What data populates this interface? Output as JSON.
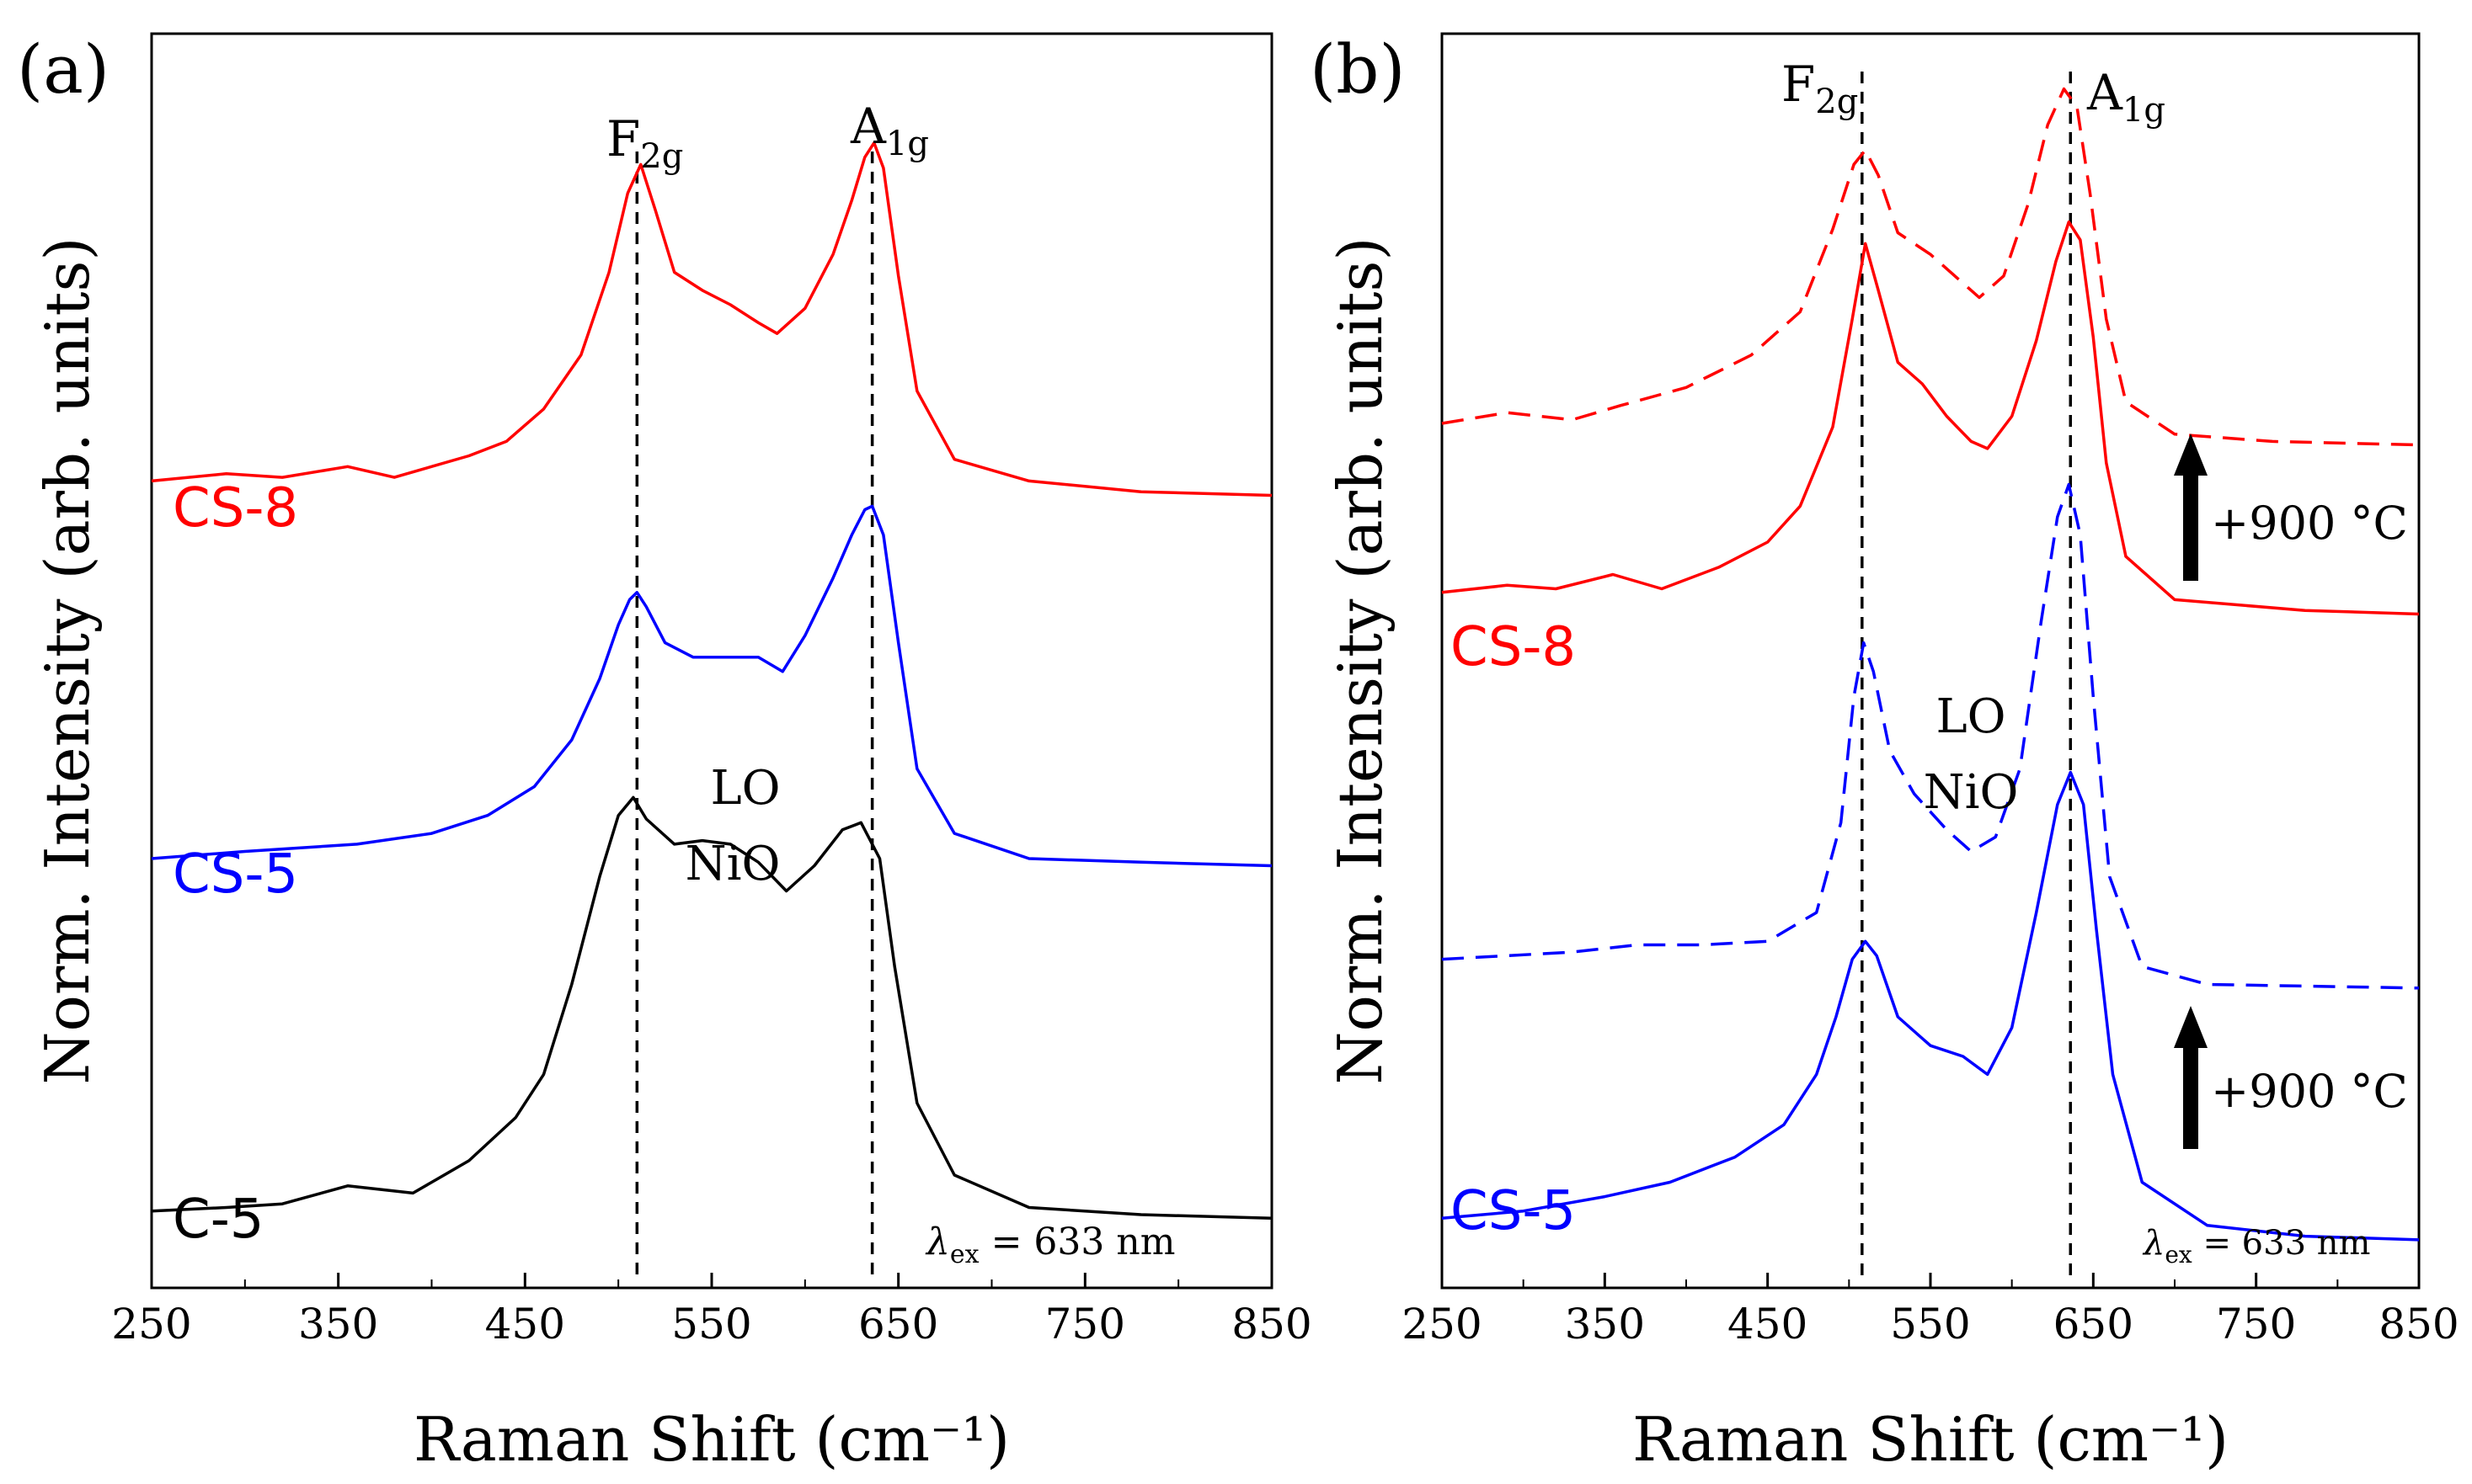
{
  "chart_data": [
    {
      "type": "line",
      "panel_label": "(a)",
      "xlabel": "Raman Shift (cm⁻¹)",
      "ylabel": "Norm. Intensity (arb. units)",
      "xlim": [
        250,
        850
      ],
      "ylim": [
        0,
        3.3
      ],
      "x_ticks": [
        "250",
        "350",
        "450",
        "550",
        "650",
        "750",
        "850"
      ],
      "excitation_label": "λ",
      "excitation_sub": "ex",
      "excitation_value": " = 633 nm",
      "peak_labels": [
        {
          "base": "F",
          "sub": "2g",
          "x": 510
        },
        {
          "base": "A",
          "sub": "1g",
          "x": 636
        }
      ],
      "annotation_lines": [
        "LO",
        "NiO"
      ],
      "series": [
        {
          "name": "CS-8",
          "color": "#ff0000",
          "dash": "solid",
          "x": [
            250,
            290,
            320,
            355,
            380,
            420,
            440,
            460,
            480,
            495,
            505,
            512,
            520,
            530,
            545,
            560,
            575,
            585,
            600,
            615,
            625,
            632,
            637,
            642,
            650,
            660,
            680,
            720,
            780,
            850
          ],
          "y": [
            2.15,
            2.17,
            2.16,
            2.19,
            2.16,
            2.22,
            2.26,
            2.35,
            2.5,
            2.73,
            2.95,
            3.03,
            2.9,
            2.73,
            2.68,
            2.64,
            2.59,
            2.56,
            2.63,
            2.78,
            2.93,
            3.05,
            3.09,
            3.02,
            2.72,
            2.4,
            2.21,
            2.15,
            2.12,
            2.11
          ]
        },
        {
          "name": "CS-5",
          "color": "#0000ff",
          "dash": "solid",
          "x": [
            250,
            300,
            360,
            400,
            430,
            455,
            475,
            490,
            500,
            506,
            510,
            515,
            525,
            540,
            560,
            575,
            588,
            600,
            615,
            625,
            632,
            636,
            642,
            650,
            660,
            680,
            720,
            780,
            850
          ],
          "y": [
            1.1,
            1.12,
            1.14,
            1.17,
            1.22,
            1.3,
            1.43,
            1.6,
            1.75,
            1.82,
            1.84,
            1.8,
            1.7,
            1.66,
            1.66,
            1.66,
            1.62,
            1.72,
            1.88,
            2.0,
            2.07,
            2.08,
            2.0,
            1.7,
            1.35,
            1.17,
            1.1,
            1.09,
            1.08
          ]
        },
        {
          "name": "C-5",
          "color": "#000000",
          "dash": "solid",
          "x": [
            250,
            290,
            320,
            355,
            390,
            420,
            445,
            460,
            475,
            490,
            500,
            508,
            515,
            530,
            545,
            560,
            575,
            590,
            605,
            620,
            630,
            640,
            648,
            660,
            680,
            720,
            780,
            850
          ],
          "y": [
            0.12,
            0.13,
            0.14,
            0.19,
            0.17,
            0.26,
            0.38,
            0.5,
            0.75,
            1.05,
            1.22,
            1.27,
            1.21,
            1.14,
            1.15,
            1.14,
            1.09,
            1.01,
            1.08,
            1.18,
            1.2,
            1.1,
            0.8,
            0.42,
            0.22,
            0.13,
            0.11,
            0.1
          ]
        }
      ]
    },
    {
      "type": "line",
      "panel_label": "(b)",
      "xlabel": "Raman Shift (cm⁻¹)",
      "ylabel": "Norm. Intensity (arb. units)",
      "xlim": [
        250,
        850
      ],
      "ylim": [
        0,
        3.3
      ],
      "x_ticks": [
        "250",
        "350",
        "450",
        "550",
        "650",
        "750",
        "850"
      ],
      "excitation_label": "λ",
      "excitation_sub": "ex",
      "excitation_value": " = 633 nm",
      "peak_labels": [
        {
          "base": "F",
          "sub": "2g",
          "x": 508
        },
        {
          "base": "A",
          "sub": "1g",
          "x": 636
        }
      ],
      "annotation_lines": [
        "LO",
        "NiO"
      ],
      "arrow_label": "+900 °C",
      "series_labels": [
        {
          "text": "CS-8",
          "color": "#ff0000"
        },
        {
          "text": "CS-5",
          "color": "#0000ff"
        }
      ],
      "series": [
        {
          "name": "CS-8 +900 °C",
          "color": "#ff0000",
          "dash": "dashed",
          "x": [
            250,
            290,
            330,
            360,
            400,
            440,
            470,
            490,
            503,
            510,
            518,
            530,
            550,
            570,
            580,
            595,
            610,
            622,
            632,
            640,
            648,
            658,
            670,
            700,
            760,
            850
          ],
          "y": [
            2.31,
            2.34,
            2.32,
            2.36,
            2.41,
            2.5,
            2.62,
            2.85,
            3.03,
            3.07,
            3.0,
            2.84,
            2.78,
            2.7,
            2.66,
            2.72,
            2.92,
            3.14,
            3.24,
            3.19,
            2.95,
            2.6,
            2.37,
            2.28,
            2.26,
            2.25
          ]
        },
        {
          "name": "CS-8",
          "color": "#ff0000",
          "dash": "solid",
          "x": [
            250,
            290,
            320,
            355,
            385,
            420,
            450,
            470,
            490,
            502,
            510,
            518,
            530,
            545,
            560,
            575,
            585,
            600,
            615,
            627,
            635,
            642,
            650,
            658,
            670,
            700,
            780,
            850
          ],
          "y": [
            1.84,
            1.86,
            1.85,
            1.89,
            1.85,
            1.91,
            1.98,
            2.08,
            2.3,
            2.6,
            2.81,
            2.68,
            2.48,
            2.42,
            2.33,
            2.26,
            2.24,
            2.33,
            2.54,
            2.76,
            2.87,
            2.82,
            2.55,
            2.2,
            1.94,
            1.82,
            1.79,
            1.78
          ]
        },
        {
          "name": "CS-5 +900 °C",
          "color": "#0000ff",
          "dash": "dashed",
          "x": [
            250,
            290,
            330,
            370,
            410,
            450,
            480,
            495,
            503,
            509,
            515,
            525,
            540,
            560,
            575,
            590,
            605,
            618,
            628,
            635,
            642,
            650,
            660,
            680,
            720,
            850
          ],
          "y": [
            0.82,
            0.83,
            0.84,
            0.86,
            0.86,
            0.87,
            0.95,
            1.2,
            1.55,
            1.7,
            1.62,
            1.4,
            1.28,
            1.18,
            1.12,
            1.16,
            1.35,
            1.76,
            2.05,
            2.14,
            2.0,
            1.55,
            1.05,
            0.8,
            0.75,
            0.74
          ]
        },
        {
          "name": "CS-5",
          "color": "#0000ff",
          "dash": "solid",
          "x": [
            250,
            300,
            350,
            390,
            430,
            460,
            480,
            492,
            502,
            510,
            517,
            530,
            550,
            570,
            585,
            600,
            615,
            628,
            636,
            644,
            652,
            662,
            680,
            720,
            780,
            850
          ],
          "y": [
            0.1,
            0.12,
            0.16,
            0.2,
            0.27,
            0.36,
            0.5,
            0.66,
            0.82,
            0.87,
            0.83,
            0.66,
            0.58,
            0.55,
            0.5,
            0.63,
            0.95,
            1.25,
            1.34,
            1.25,
            0.9,
            0.5,
            0.2,
            0.08,
            0.05,
            0.04
          ]
        }
      ]
    }
  ],
  "panel_a_labels": [
    {
      "text": "CS-8",
      "color": "#ff0000"
    },
    {
      "text": "CS-5",
      "color": "#0000ff"
    },
    {
      "text": "C-5",
      "color": "#000000"
    }
  ]
}
